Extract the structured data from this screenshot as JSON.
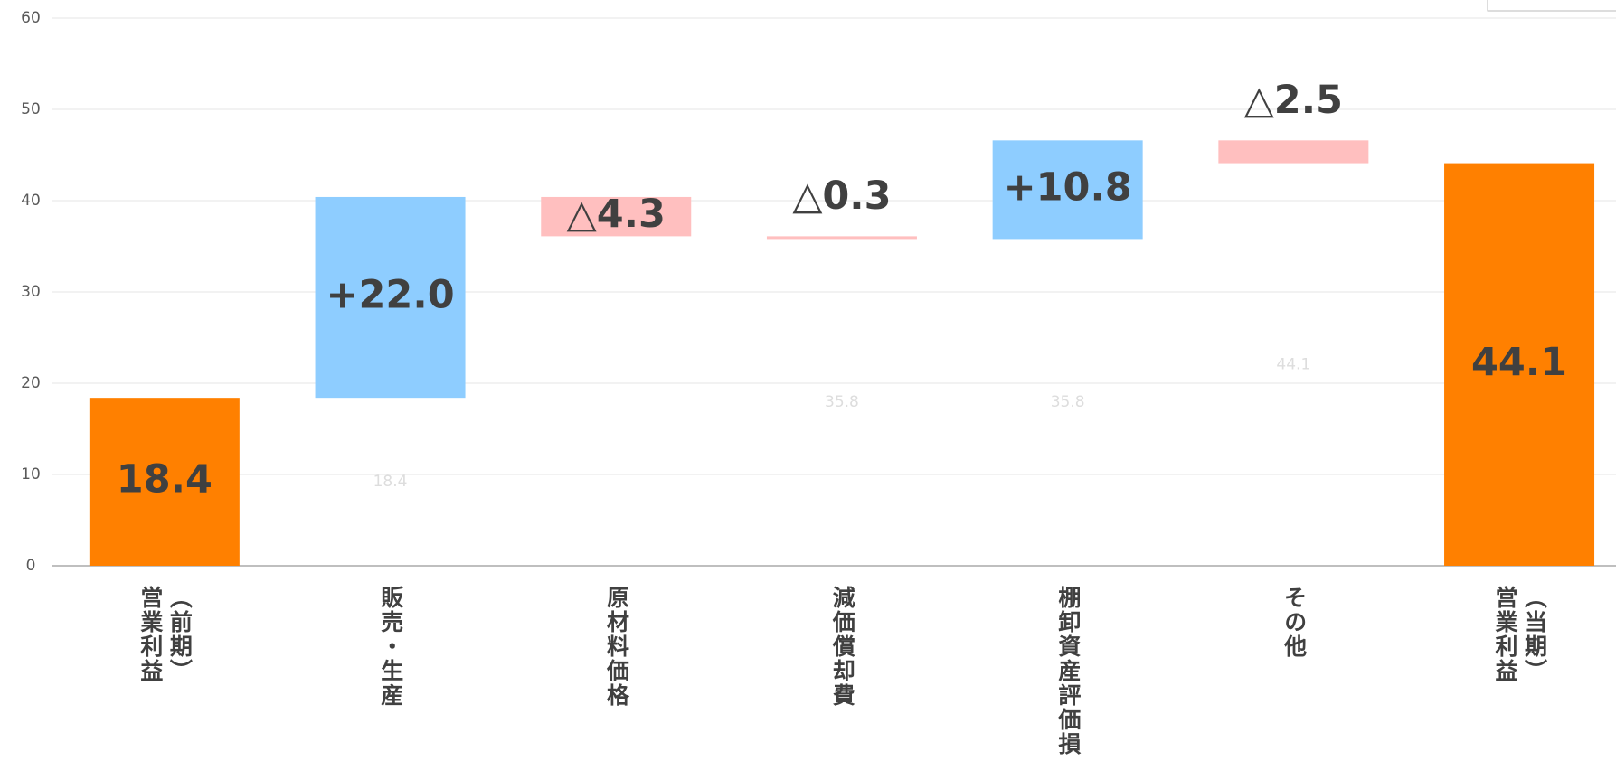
{
  "chart_data": {
    "type": "waterfall",
    "categories": [
      "（前期）営業利益",
      "販売・生産",
      "原材料価格",
      "減価償却費",
      "棚卸資産評価損",
      "その他",
      "（当期）営業利益"
    ],
    "base": {
      "values": [
        null,
        18.4,
        36.1,
        35.8,
        35.8,
        44.1,
        null
      ],
      "value_labels": [
        null,
        "18.4",
        null,
        "35.8",
        "35.8",
        "44.1",
        null
      ],
      "color": "#dddddd"
    },
    "increase": {
      "values": [
        null,
        22.0,
        null,
        null,
        10.8,
        null,
        null
      ],
      "value_labels": [
        null,
        "+22.0",
        null,
        null,
        "+10.8",
        null,
        null
      ],
      "color": "#8ecdff"
    },
    "decrease": {
      "values": [
        null,
        null,
        4.3,
        0.3,
        null,
        2.5,
        null
      ],
      "value_labels": [
        null,
        null,
        "△4.3",
        "△0.3",
        null,
        "△2.5",
        null
      ],
      "color": "#ffbfbf"
    },
    "total": {
      "values": [
        18.4,
        null,
        null,
        null,
        null,
        null,
        44.1
      ],
      "color": "#ff8000"
    },
    "ylim": [
      0,
      60
    ],
    "yticks": [
      0,
      10,
      20,
      30,
      40,
      50,
      60
    ],
    "grid": true
  }
}
